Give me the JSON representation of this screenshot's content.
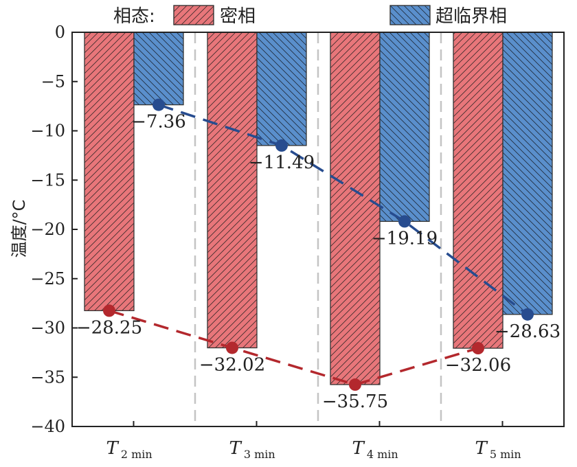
{
  "chart_data": {
    "type": "bar",
    "categories": [
      {
        "main": "T",
        "sub": "2 min"
      },
      {
        "main": "T",
        "sub": "3 min"
      },
      {
        "main": "T",
        "sub": "4 min"
      },
      {
        "main": "T",
        "sub": "5 min"
      }
    ],
    "series": [
      {
        "name": "密相",
        "values": [
          -28.25,
          -32.02,
          -35.75,
          -32.06
        ],
        "color": "#e8767a",
        "line_color": "#b3282d",
        "labels": [
          "−28.25",
          "−32.02",
          "−35.75",
          "−32.06"
        ]
      },
      {
        "name": "超临界相",
        "values": [
          -7.36,
          -11.49,
          -19.19,
          -28.63
        ],
        "color": "#5a8fcc",
        "line_color": "#274c8f",
        "labels": [
          "−7.36",
          "−11.49",
          "−19.19",
          "−28.63"
        ]
      }
    ],
    "legend_title": "相态:",
    "legend_placement": "top",
    "xlabel": "",
    "ylabel": "温度/°C",
    "ylim": [
      -40,
      0
    ],
    "yticks": [
      0,
      -5,
      -10,
      -15,
      -20,
      -25,
      -30,
      -35,
      -40
    ],
    "ytick_labels": [
      "0",
      "−5",
      "−10",
      "−15",
      "−20",
      "−25",
      "−30",
      "−35",
      "−40"
    ],
    "grid": false,
    "category_separators": "dashed",
    "trend_lines": "dashed with circle markers"
  }
}
